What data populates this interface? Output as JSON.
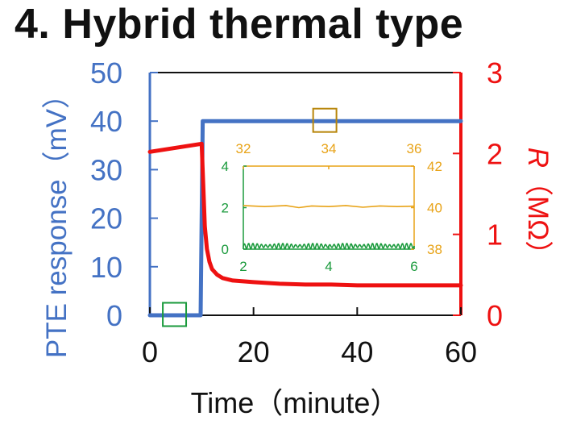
{
  "title": "4. Hybrid thermal type",
  "colors": {
    "left_axis": "#4472C4",
    "right_axis": "#EE1111",
    "inset_green": "#1A9A3C",
    "inset_orange": "#E8A317",
    "box_green": "#1A9A3C",
    "box_brown": "#B8860B",
    "text": "#111111"
  },
  "chart_data": [
    {
      "type": "line",
      "xlabel": "Time（minute）",
      "ylabel": "PTE response（mV）",
      "y2label_symbol": "R",
      "y2label_unit": "（MΩ）",
      "xlim": [
        0,
        60
      ],
      "ylim": [
        0,
        50
      ],
      "y2lim": [
        0,
        3
      ],
      "xticks": [
        0,
        20,
        40,
        60
      ],
      "yticks": [
        0,
        10,
        20,
        30,
        40,
        50
      ],
      "y2ticks": [
        0,
        1,
        2,
        3
      ],
      "grid": false,
      "series": [
        {
          "axis": "left",
          "color": "#4472C4",
          "x": [
            0,
            9.8,
            10.2,
            60
          ],
          "y": [
            0,
            0,
            40,
            40
          ]
        },
        {
          "axis": "right",
          "color": "#EE1111",
          "x": [
            0,
            10.0,
            10.3,
            10.6,
            11,
            11.5,
            12,
            13,
            14,
            16,
            18,
            20,
            25,
            30,
            35,
            40,
            45,
            50,
            55,
            60
          ],
          "y": [
            2.02,
            2.12,
            1.6,
            1.1,
            0.82,
            0.66,
            0.57,
            0.5,
            0.46,
            0.43,
            0.42,
            0.41,
            0.39,
            0.38,
            0.38,
            0.37,
            0.37,
            0.37,
            0.37,
            0.37
          ]
        }
      ],
      "highlight_boxes": [
        {
          "x_range": [
            2.5,
            7
          ],
          "axis": "left",
          "y_center": 0,
          "color": "green"
        },
        {
          "x_range": [
            31.5,
            36
          ],
          "axis": "left",
          "y_center": 40,
          "color": "brown"
        }
      ]
    },
    {
      "type": "line",
      "role": "inset",
      "xlim": [
        2,
        6
      ],
      "ylim": [
        0,
        4
      ],
      "x2lim": [
        32,
        36
      ],
      "y2lim": [
        38,
        42
      ],
      "xticks": [
        2,
        4,
        6
      ],
      "yticks": [
        0,
        2,
        4
      ],
      "x2ticks": [
        32,
        34,
        36
      ],
      "y2ticks": [
        38,
        40,
        42
      ],
      "series": [
        {
          "axis": "bottom-left",
          "color": "#1A9A3C",
          "oscillation": {
            "center": 0.15,
            "amplitude": 0.13,
            "cycles": 40
          }
        },
        {
          "axis": "top-right",
          "color": "#E8A317",
          "x": [
            32,
            32.5,
            33,
            33.3,
            33.6,
            34,
            34.4,
            34.8,
            35.2,
            35.6,
            36
          ],
          "y": [
            40.1,
            40.05,
            40.1,
            40.0,
            40.08,
            40.05,
            40.1,
            40.02,
            40.08,
            40.05,
            40.07
          ]
        }
      ]
    }
  ]
}
